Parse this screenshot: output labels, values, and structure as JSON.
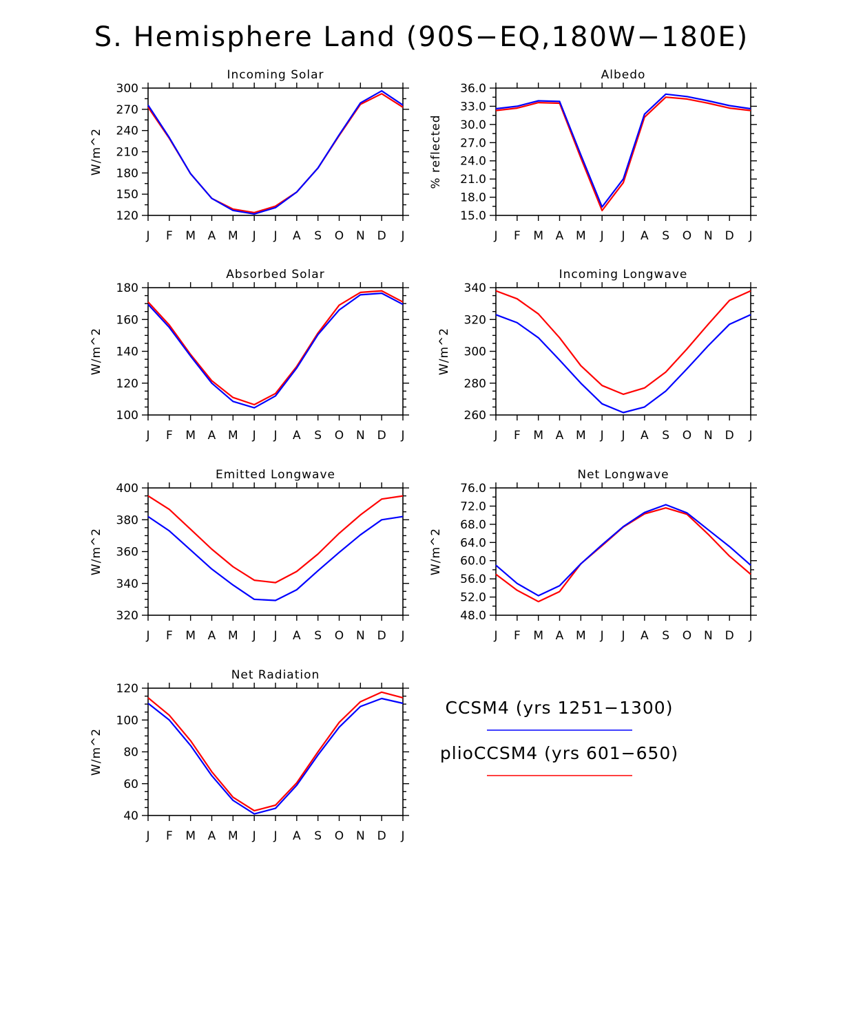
{
  "figure_title": "S. Hemisphere Land (90S−EQ,180W−180E)",
  "colors": {
    "ccsm4": "#0000ff",
    "plio": "#ff0000",
    "axis": "#000000"
  },
  "legend": [
    {
      "label": "CCSM4 (yrs 1251−1300)",
      "color": "#0000ff"
    },
    {
      "label": "plioCCSM4 (yrs 601−650)",
      "color": "#ff0000"
    }
  ],
  "chart_data": [
    {
      "type": "line",
      "title": "Incoming Solar",
      "ylabel": "W/m^2",
      "categories": [
        "J",
        "F",
        "M",
        "A",
        "M",
        "J",
        "J",
        "A",
        "S",
        "O",
        "N",
        "D",
        "J"
      ],
      "ylim": [
        120,
        300
      ],
      "yticks": [
        "120",
        "150",
        "180",
        "210",
        "240",
        "270",
        "300"
      ],
      "series": [
        {
          "name": "CCSM4 (yrs 1251−1300)",
          "values": [
            276,
            230,
            179,
            144,
            127,
            122,
            131,
            153,
            187,
            234,
            279,
            296,
            276
          ]
        },
        {
          "name": "plioCCSM4 (yrs 601−650)",
          "values": [
            273,
            229,
            179,
            144,
            129,
            124,
            133,
            153,
            187,
            233,
            277,
            292,
            273
          ]
        }
      ]
    },
    {
      "type": "line",
      "title": "Albedo",
      "ylabel": "% reflected",
      "categories": [
        "J",
        "F",
        "M",
        "A",
        "M",
        "J",
        "J",
        "A",
        "S",
        "O",
        "N",
        "D",
        "J"
      ],
      "ylim": [
        15,
        36
      ],
      "yticks": [
        "15.0",
        "18.0",
        "21.0",
        "24.0",
        "27.0",
        "30.0",
        "33.0",
        "36.0"
      ],
      "series": [
        {
          "name": "CCSM4 (yrs 1251−1300)",
          "values": [
            32.6,
            33.0,
            33.9,
            33.8,
            25.0,
            16.4,
            21.0,
            31.7,
            35.0,
            34.6,
            33.9,
            33.1,
            32.6
          ]
        },
        {
          "name": "plioCCSM4 (yrs 601−650)",
          "values": [
            32.3,
            32.7,
            33.6,
            33.5,
            24.5,
            15.8,
            20.4,
            31.2,
            34.5,
            34.2,
            33.5,
            32.7,
            32.3
          ]
        }
      ]
    },
    {
      "type": "line",
      "title": "Absorbed Solar",
      "ylabel": "W/m^2",
      "categories": [
        "J",
        "F",
        "M",
        "A",
        "M",
        "J",
        "J",
        "A",
        "S",
        "O",
        "N",
        "D",
        "J"
      ],
      "ylim": [
        100,
        180
      ],
      "yticks": [
        "100",
        "120",
        "140",
        "160",
        "180"
      ],
      "series": [
        {
          "name": "CCSM4 (yrs 1251−1300)",
          "values": [
            169.5,
            155,
            137,
            120,
            108.5,
            104.5,
            112,
            129.5,
            150.5,
            166,
            175.5,
            176.5,
            169.5
          ]
        },
        {
          "name": "plioCCSM4 (yrs 601−650)",
          "values": [
            171,
            156.5,
            138,
            121.5,
            111,
            106.5,
            113.5,
            130.5,
            151.5,
            169,
            177,
            178,
            171
          ]
        }
      ]
    },
    {
      "type": "line",
      "title": "Incoming Longwave",
      "ylabel": "W/m^2",
      "categories": [
        "J",
        "F",
        "M",
        "A",
        "M",
        "J",
        "J",
        "A",
        "S",
        "O",
        "N",
        "D",
        "J"
      ],
      "ylim": [
        260,
        340
      ],
      "yticks": [
        "260",
        "280",
        "300",
        "320",
        "340"
      ],
      "series": [
        {
          "name": "CCSM4 (yrs 1251−1300)",
          "values": [
            323,
            318,
            308.5,
            294.5,
            280,
            267,
            261.5,
            265,
            275,
            289,
            303.5,
            317,
            323
          ]
        },
        {
          "name": "plioCCSM4 (yrs 601−650)",
          "values": [
            338,
            333,
            323.5,
            308.5,
            291,
            278.5,
            273,
            277,
            287,
            301.5,
            317,
            332,
            338
          ]
        }
      ]
    },
    {
      "type": "line",
      "title": "Emitted Longwave",
      "ylabel": "W/m^2",
      "categories": [
        "J",
        "F",
        "M",
        "A",
        "M",
        "J",
        "J",
        "A",
        "S",
        "O",
        "N",
        "D",
        "J"
      ],
      "ylim": [
        320,
        400
      ],
      "yticks": [
        "320",
        "340",
        "360",
        "380",
        "400"
      ],
      "series": [
        {
          "name": "CCSM4 (yrs 1251−1300)",
          "values": [
            382,
            373,
            361,
            349,
            339,
            330,
            329.3,
            336,
            348,
            359.5,
            370.5,
            380,
            382
          ]
        },
        {
          "name": "plioCCSM4 (yrs 601−650)",
          "values": [
            395,
            386.5,
            374,
            361.5,
            350.5,
            342,
            340.5,
            347.5,
            358.5,
            371.5,
            383,
            393,
            395
          ]
        }
      ]
    },
    {
      "type": "line",
      "title": "Net Longwave",
      "ylabel": "W/m^2",
      "categories": [
        "J",
        "F",
        "M",
        "A",
        "M",
        "J",
        "J",
        "A",
        "S",
        "O",
        "N",
        "D",
        "J"
      ],
      "ylim": [
        48,
        76
      ],
      "yticks": [
        "48.0",
        "52.0",
        "56.0",
        "60.0",
        "64.0",
        "68.0",
        "72.0",
        "76.0"
      ],
      "series": [
        {
          "name": "CCSM4 (yrs 1251−1300)",
          "values": [
            59.0,
            55.0,
            52.3,
            54.5,
            59.3,
            63.5,
            67.5,
            70.6,
            72.3,
            70.5,
            66.8,
            63.1,
            59.0
          ]
        },
        {
          "name": "plioCCSM4 (yrs 601−650)",
          "values": [
            57.0,
            53.5,
            51.0,
            53.2,
            59.3,
            63.3,
            67.4,
            70.3,
            71.6,
            70.2,
            65.8,
            61.0,
            57.0
          ]
        }
      ]
    },
    {
      "type": "line",
      "title": "Net Radiation",
      "ylabel": "W/m^2",
      "categories": [
        "J",
        "F",
        "M",
        "A",
        "M",
        "J",
        "J",
        "A",
        "S",
        "O",
        "N",
        "D",
        "J"
      ],
      "ylim": [
        40,
        120
      ],
      "yticks": [
        "40",
        "60",
        "80",
        "100",
        "120"
      ],
      "series": [
        {
          "name": "CCSM4 (yrs 1251−1300)",
          "values": [
            110.5,
            100,
            84,
            65,
            49.5,
            41,
            44.5,
            59,
            78,
            95.5,
            108.5,
            113.5,
            110.5
          ]
        },
        {
          "name": "plioCCSM4 (yrs 601−650)",
          "values": [
            114,
            103,
            87,
            67.5,
            51.5,
            43,
            46.5,
            60.5,
            80,
            98.5,
            111.5,
            117.5,
            114
          ]
        }
      ]
    }
  ]
}
